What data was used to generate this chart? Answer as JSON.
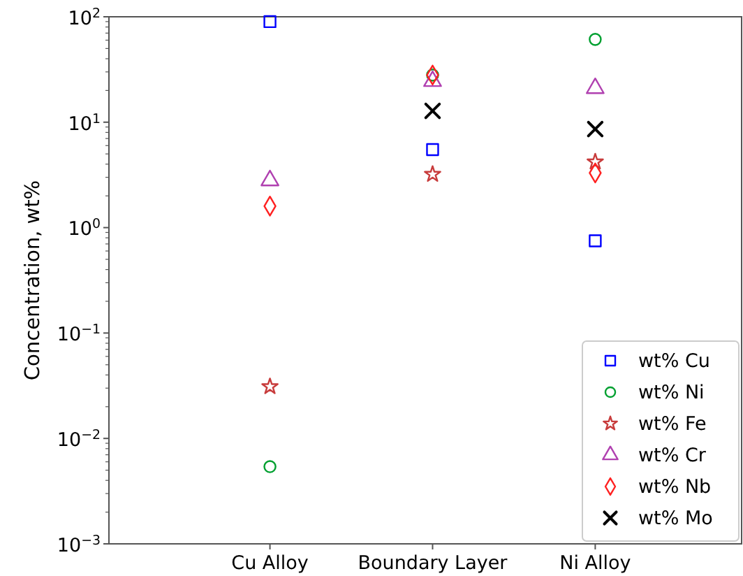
{
  "chart_data": {
    "type": "scatter",
    "ylabel": "Concentration, wt%",
    "categories": [
      "Cu Alloy",
      "Boundary Layer",
      "Ni Alloy"
    ],
    "log": true,
    "ylim": [
      0.001,
      100
    ],
    "yticks": [
      {
        "value": 0.001,
        "label": "10$^{−3}$"
      },
      {
        "value": 0.01,
        "label": "10$^{−2}$"
      },
      {
        "value": 0.1,
        "label": "10$^{−1}$"
      },
      {
        "value": 1,
        "label": "10$^{0}$"
      },
      {
        "value": 10,
        "label": "10$^{1}$"
      },
      {
        "value": 100,
        "label": "10$^{2}$"
      }
    ],
    "grid": false,
    "legend": "bottom right",
    "series": [
      {
        "name": "wt% Cu",
        "color": "#0000ff",
        "marker": "square",
        "values": [
          90,
          5.5,
          0.75
        ]
      },
      {
        "name": "wt% Ni",
        "color": "#00a030",
        "marker": "circle",
        "values": [
          0.0054,
          28,
          61
        ]
      },
      {
        "name": "wt% Fe",
        "color": "#c83c3c",
        "marker": "star",
        "values": [
          0.031,
          3.2,
          4.2
        ]
      },
      {
        "name": "wt% Cr",
        "color": "#b040b0",
        "marker": "triangle",
        "values": [
          2.8,
          24.5,
          21
        ]
      },
      {
        "name": "wt% Nb",
        "color": "#ff2020",
        "marker": "diamond",
        "values": [
          1.6,
          28,
          3.3
        ]
      },
      {
        "name": "wt% Mo",
        "color": "#000000",
        "marker": "cross",
        "values": [
          null,
          12.8,
          8.6
        ]
      }
    ]
  }
}
